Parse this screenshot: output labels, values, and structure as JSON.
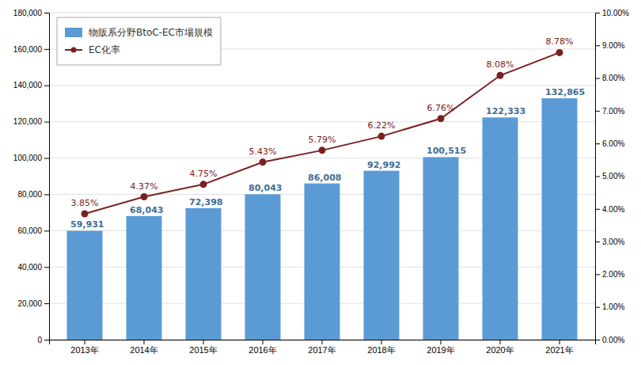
{
  "chart_data": {
    "type": "bar",
    "categories": [
      "2013年",
      "2014年",
      "2015年",
      "2016年",
      "2017年",
      "2018年",
      "2019年",
      "2020年",
      "2021年"
    ],
    "series": [
      {
        "name": "物販系分野BtoC-EC市場規模",
        "type": "bar",
        "color": "#5B9BD5",
        "values": [
          59931,
          68043,
          72398,
          80043,
          86008,
          92992,
          100515,
          122333,
          132865
        ],
        "value_labels": [
          "59,931",
          "68,043",
          "72,398",
          "80,043",
          "86,008",
          "92,992",
          "100,515",
          "122,333",
          "132,865"
        ]
      },
      {
        "name": "EC化率",
        "type": "line",
        "axis": "y2",
        "color": "#7B2020",
        "marker": "circle",
        "values": [
          3.85,
          4.37,
          4.75,
          5.43,
          5.79,
          6.22,
          6.76,
          8.08,
          8.78
        ],
        "value_labels": [
          "3.85%",
          "4.37%",
          "4.75%",
          "5.43%",
          "5.79%",
          "6.22%",
          "6.76%",
          "8.08%",
          "8.78%"
        ]
      }
    ],
    "ylim": [
      0,
      180000
    ],
    "yticks": [
      0,
      {
        "value": 20000,
        "label": "20,000"
      },
      {
        "value": 40000,
        "label": "40,000"
      },
      {
        "value": 60000,
        "label": "60,000"
      },
      {
        "value": 80000,
        "label": "80,000"
      },
      {
        "value": 100000,
        "label": "100,000"
      },
      {
        "value": 120000,
        "label": "120,000"
      },
      {
        "value": 140000,
        "label": "140,000"
      },
      {
        "value": 160000,
        "label": "160,000"
      },
      {
        "value": 180000,
        "label": "180,000"
      }
    ],
    "y2lim": [
      0,
      10.0
    ],
    "y2ticks": [
      {
        "value": 0.0,
        "label": "0.00%"
      },
      {
        "value": 1.0,
        "label": "1.00%"
      },
      {
        "value": 2.0,
        "label": "2.00%"
      },
      {
        "value": 3.0,
        "label": "3.00%"
      },
      {
        "value": 4.0,
        "label": "4.00%"
      },
      {
        "value": 5.0,
        "label": "5.00%"
      },
      {
        "value": 6.0,
        "label": "6.00%"
      },
      {
        "value": 7.0,
        "label": "7.00%"
      },
      {
        "value": 8.0,
        "label": "8.00%"
      },
      {
        "value": 9.0,
        "label": "9.00%"
      },
      {
        "value": 10.0,
        "label": "10.00%"
      }
    ],
    "grid": true,
    "legend": "upper left",
    "data_labels": true
  }
}
